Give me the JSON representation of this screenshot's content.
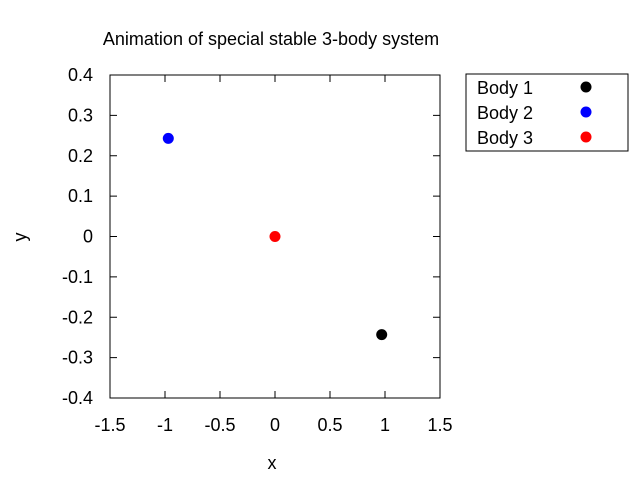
{
  "chart_data": {
    "type": "scatter",
    "title": "Animation of special stable 3-body system",
    "xlabel": "x",
    "ylabel": "y",
    "xlim": [
      -1.5,
      1.5
    ],
    "ylim": [
      -0.4,
      0.4
    ],
    "xticks": [
      "-1.5",
      "-1",
      "-0.5",
      "0",
      "0.5",
      "1",
      "1.5"
    ],
    "yticks": [
      "0.4",
      "0.3",
      "0.2",
      "0.1",
      "0",
      "-0.1",
      "-0.2",
      "-0.3",
      "-0.4"
    ],
    "grid": false,
    "legend_position": "outside-right",
    "series": [
      {
        "name": "Body 1",
        "color": "#000000",
        "points": [
          [
            0.97,
            -0.243
          ]
        ]
      },
      {
        "name": "Body 2",
        "color": "#0000ff",
        "points": [
          [
            -0.97,
            0.243
          ]
        ]
      },
      {
        "name": "Body 3",
        "color": "#ff0000",
        "points": [
          [
            0.0,
            0.0
          ]
        ]
      }
    ]
  }
}
